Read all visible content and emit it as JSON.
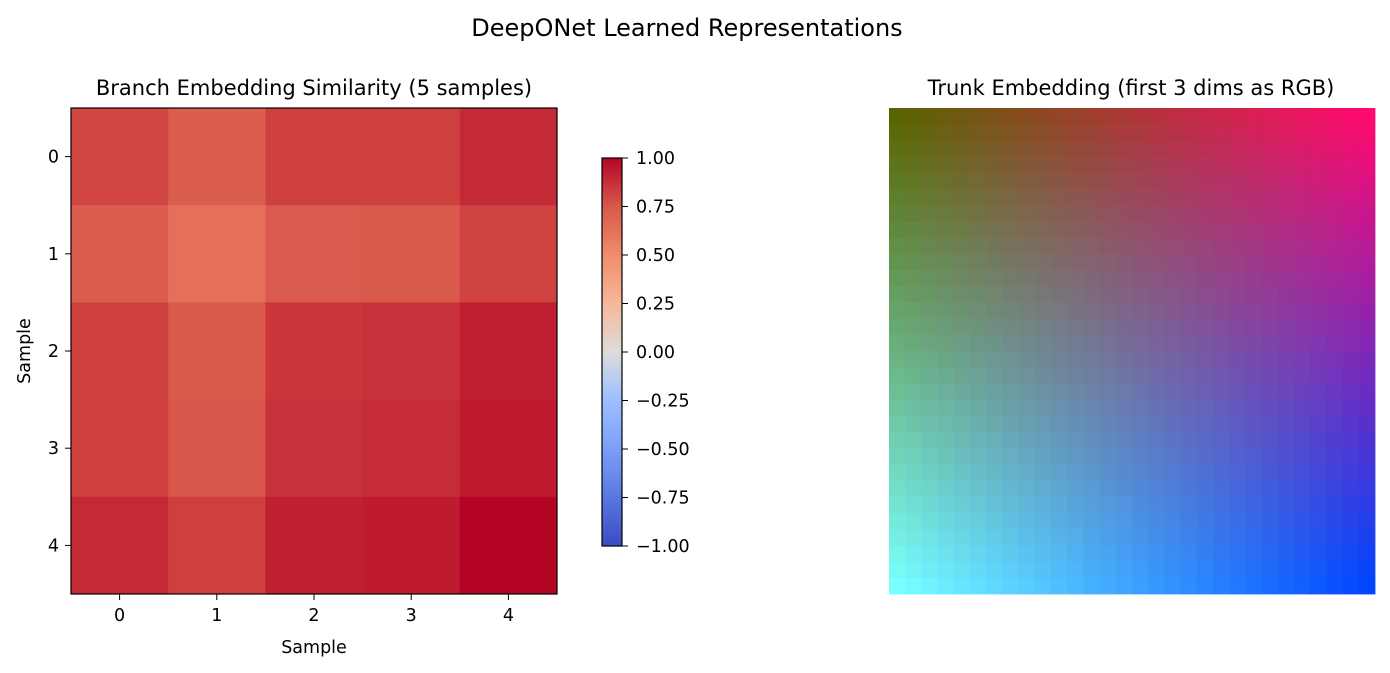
{
  "figure": {
    "title": "DeepONet Learned Representations"
  },
  "chart_data": [
    {
      "type": "heatmap",
      "title": "Branch Embedding Similarity (5 samples)",
      "xlabel": "Sample",
      "ylabel": "Sample",
      "x_categories": [
        "0",
        "1",
        "2",
        "3",
        "4"
      ],
      "y_categories": [
        "0",
        "1",
        "2",
        "3",
        "4"
      ],
      "values": [
        [
          0.8,
          0.72,
          0.82,
          0.82,
          0.89
        ],
        [
          0.72,
          0.63,
          0.73,
          0.74,
          0.81
        ],
        [
          0.82,
          0.74,
          0.85,
          0.86,
          0.92
        ],
        [
          0.82,
          0.75,
          0.86,
          0.88,
          0.93
        ],
        [
          0.89,
          0.82,
          0.92,
          0.93,
          1.0
        ]
      ],
      "colormap": "coolwarm",
      "colorbar": {
        "range": [
          -1.0,
          1.0
        ],
        "ticks": [
          1.0,
          0.75,
          0.5,
          0.25,
          0.0,
          -0.25,
          -0.5,
          -0.75,
          -1.0
        ],
        "tick_labels": [
          "1.00",
          "0.75",
          "0.50",
          "0.25",
          "0.00",
          "−0.25",
          "−0.50",
          "−0.75",
          "−1.00"
        ]
      }
    },
    {
      "type": "heatmap",
      "title": "Trunk Embedding (first 3 dims as RGB)",
      "axes_visible": false,
      "grid_size": 30,
      "corner_colors": {
        "top_left": "#5a6400",
        "top_right": "#ff0a6e",
        "bottom_left": "#78ffff",
        "bottom_right": "#0046ff"
      }
    }
  ]
}
